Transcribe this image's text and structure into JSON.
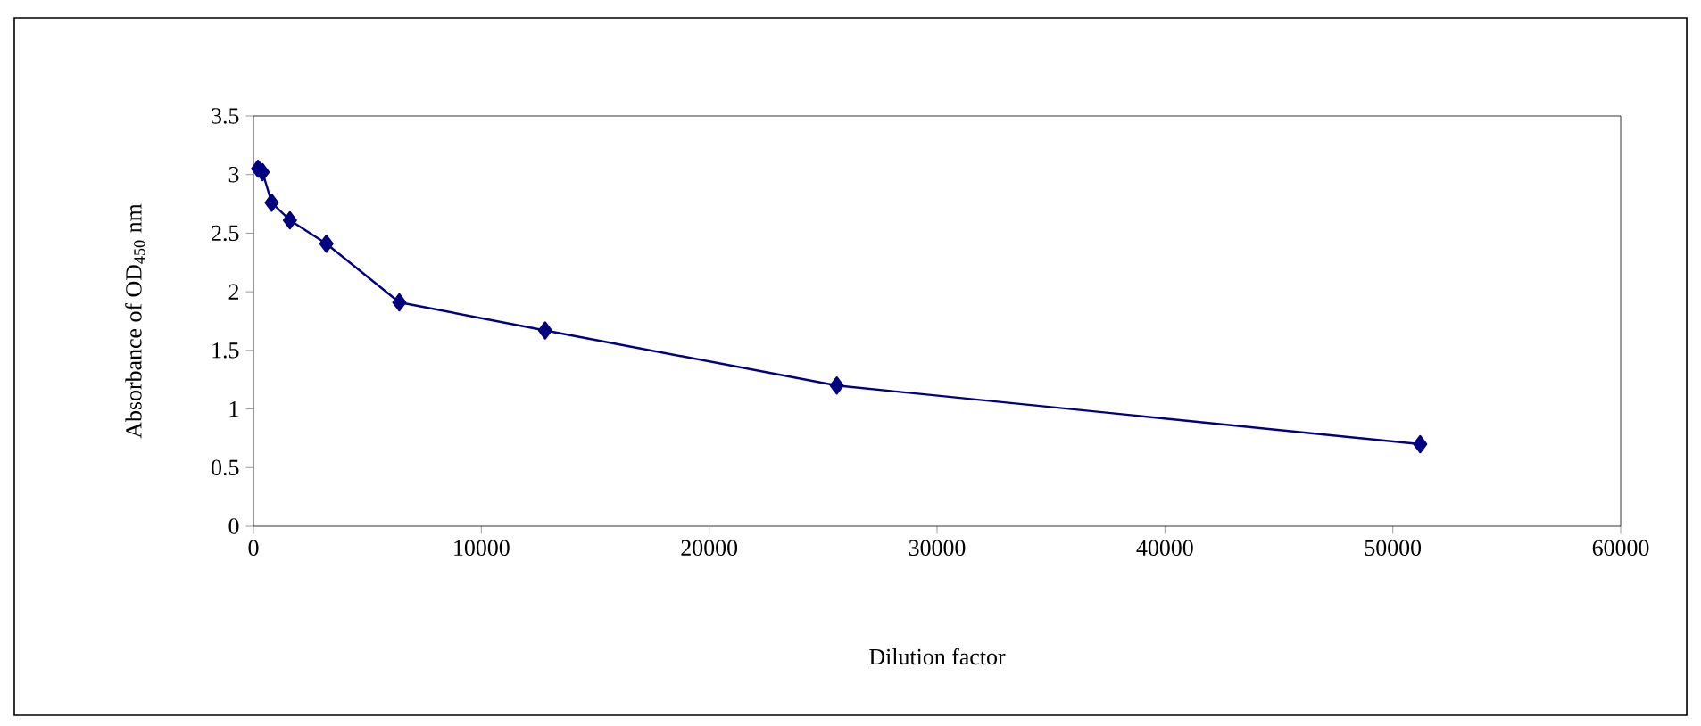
{
  "chart_data": {
    "type": "line",
    "xlabel": "Dilution factor",
    "ylabel": "Absorbance of OD$_{450}$ nm",
    "x": [
      200,
      400,
      800,
      1600,
      3200,
      6400,
      12800,
      25600,
      51200
    ],
    "series": [
      {
        "color": "#000080",
        "values": [
          3.05,
          3.02,
          2.76,
          2.61,
          2.41,
          1.91,
          1.67,
          1.2,
          0.7
        ]
      }
    ],
    "xlim": [
      0,
      60000
    ],
    "xticks": [
      0,
      10000,
      20000,
      30000,
      40000,
      50000,
      60000
    ],
    "ylim": [
      0,
      3.5
    ],
    "yticks": [
      0,
      0.5,
      1,
      1.5,
      2,
      2.5,
      3,
      3.5
    ],
    "grid": false,
    "marker": "diamond",
    "line_style": "solid"
  }
}
